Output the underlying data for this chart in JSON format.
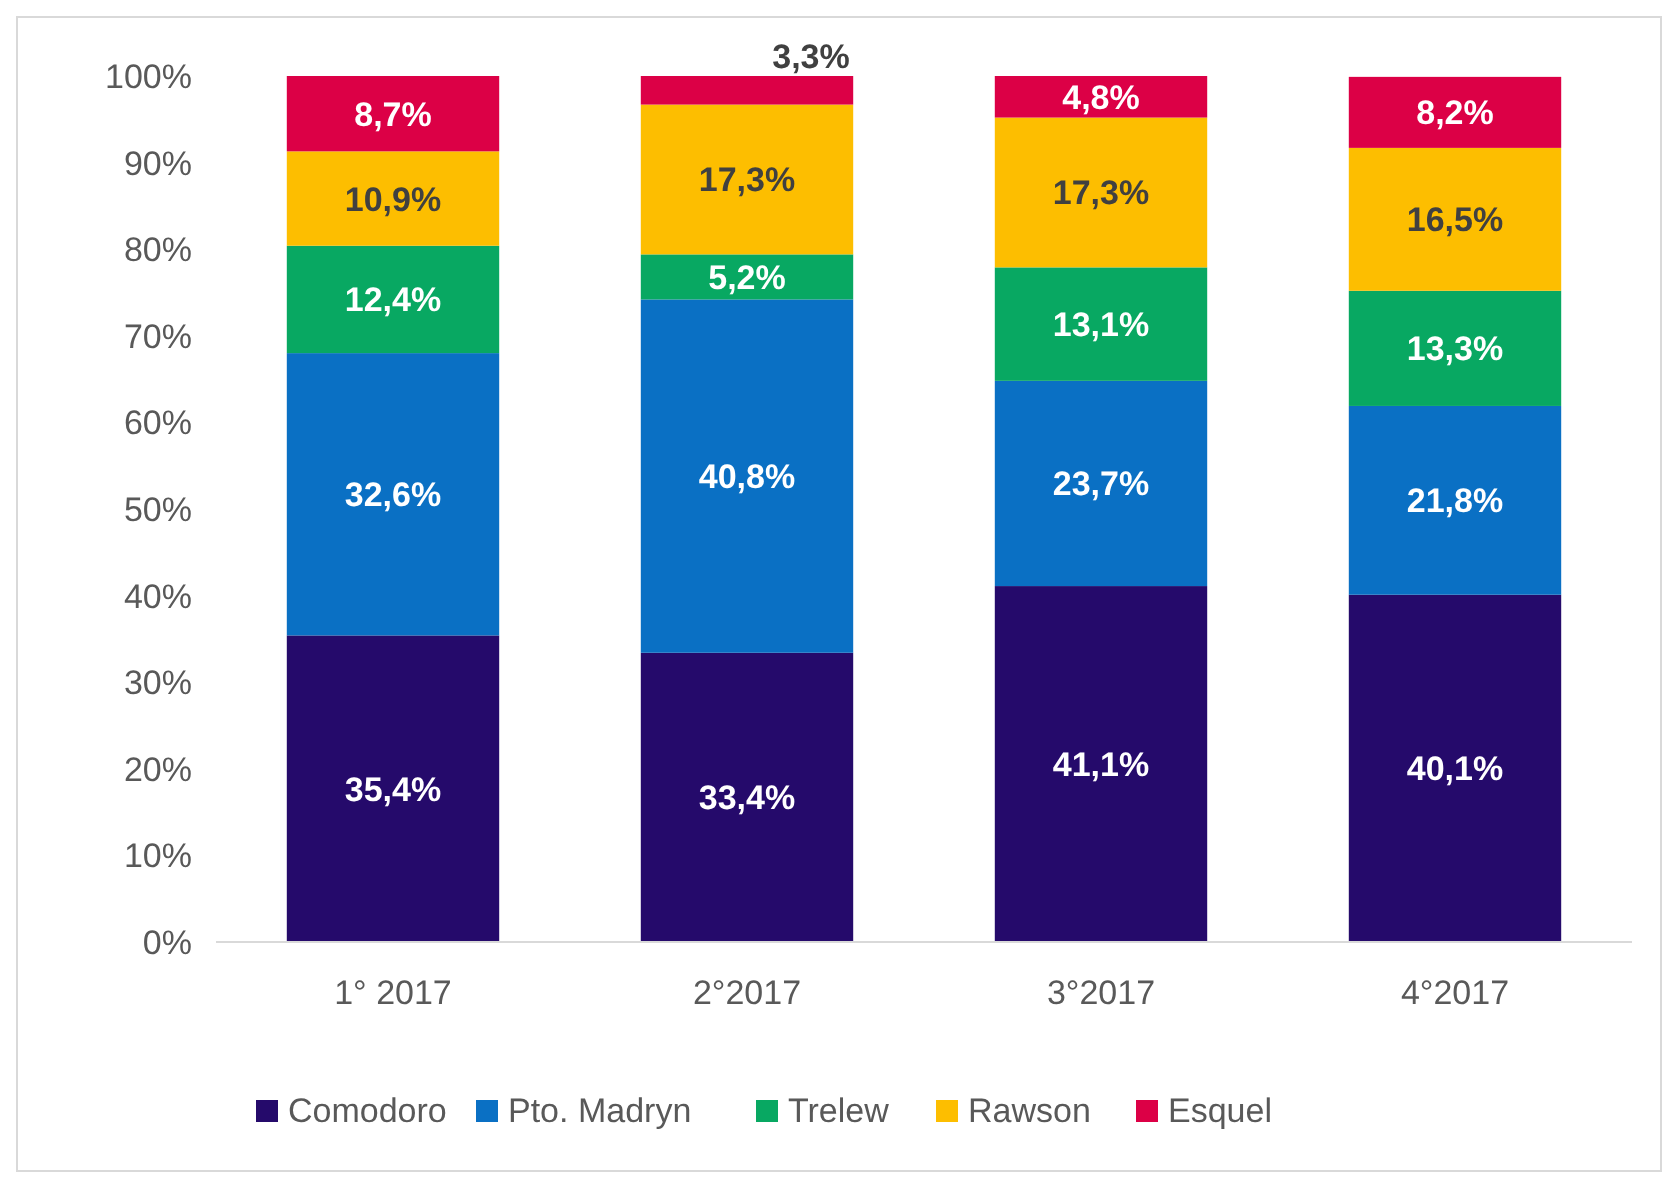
{
  "chart_data": {
    "type": "bar",
    "stacked": true,
    "categories": [
      "1° 2017",
      "2°2017",
      "3°2017",
      "4°2017"
    ],
    "ylim": [
      0,
      100
    ],
    "yticks": [
      {
        "value": 0,
        "label": "0%"
      },
      {
        "value": 10,
        "label": "10%"
      },
      {
        "value": 20,
        "label": "20%"
      },
      {
        "value": 30,
        "label": "30%"
      },
      {
        "value": 40,
        "label": "40%"
      },
      {
        "value": 50,
        "label": "50%"
      },
      {
        "value": 60,
        "label": "60%"
      },
      {
        "value": 70,
        "label": "70%"
      },
      {
        "value": 80,
        "label": "80%"
      },
      {
        "value": 90,
        "label": "90%"
      },
      {
        "value": 100,
        "label": "100%"
      }
    ],
    "grid": false,
    "legend": "bottom",
    "series": [
      {
        "name": "Comodoro",
        "color": "#250a6b",
        "values": [
          35.4,
          33.4,
          41.1,
          40.1
        ],
        "value_labels": [
          "35,4%",
          "33,4%",
          "41,1%",
          "40,1%"
        ]
      },
      {
        "name": "Pto. Madryn",
        "color": "#0a70c4",
        "values": [
          32.6,
          40.8,
          23.7,
          21.8
        ],
        "value_labels": [
          "32,6%",
          "40,8%",
          "23,7%",
          "21,8%"
        ]
      },
      {
        "name": "Trelew",
        "color": "#08a862",
        "values": [
          12.4,
          5.2,
          13.1,
          13.3
        ],
        "value_labels": [
          "12,4%",
          "5,2%",
          "13,1%",
          "13,3%"
        ]
      },
      {
        "name": "Rawson",
        "color": "#fdbe00",
        "values": [
          10.9,
          17.3,
          17.3,
          16.5
        ],
        "value_labels": [
          "10,9%",
          "17,3%",
          "17,3%",
          "16,5%"
        ]
      },
      {
        "name": "Esquel",
        "color": "#dc0046",
        "values": [
          8.7,
          3.3,
          4.8,
          8.2
        ],
        "value_labels": [
          "8,7%",
          "3,3%",
          "4,8%",
          "8,2%"
        ]
      }
    ]
  }
}
